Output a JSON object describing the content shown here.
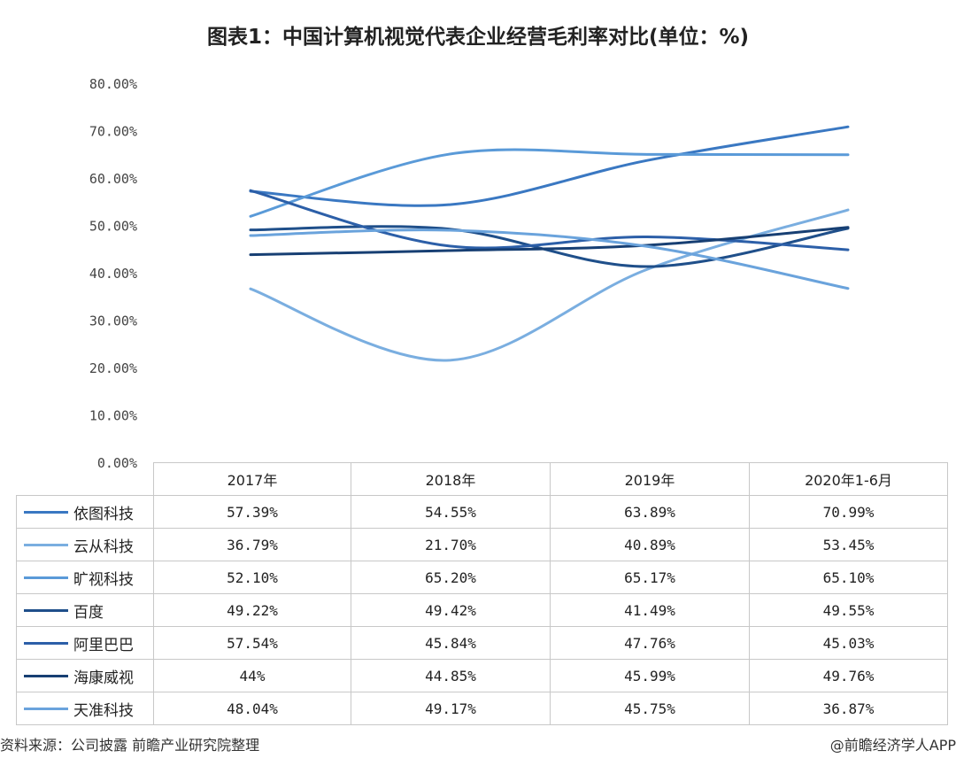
{
  "chart_data": {
    "type": "line",
    "title": "图表1：中国计算机视觉代表企业经营毛利率对比(单位：%)",
    "categories": [
      "2017年",
      "2018年",
      "2019年",
      "2020年1-6月"
    ],
    "ylim": [
      0,
      80
    ],
    "yticks": [
      "0.00%",
      "10.00%",
      "20.00%",
      "30.00%",
      "40.00%",
      "50.00%",
      "60.00%",
      "70.00%",
      "80.00%"
    ],
    "series": [
      {
        "name": "依图科技",
        "values": [
          57.39,
          54.55,
          63.89,
          70.99
        ],
        "labels": [
          "57.39%",
          "54.55%",
          "63.89%",
          "70.99%"
        ],
        "color": "#3a78c2"
      },
      {
        "name": "云从科技",
        "values": [
          36.79,
          21.7,
          40.89,
          53.45
        ],
        "labels": [
          "36.79%",
          "21.70%",
          "40.89%",
          "53.45%"
        ],
        "color": "#7aaee0"
      },
      {
        "name": "旷视科技",
        "values": [
          52.1,
          65.2,
          65.17,
          65.1
        ],
        "labels": [
          "52.10%",
          "65.20%",
          "65.17%",
          "65.10%"
        ],
        "color": "#5a9ad8"
      },
      {
        "name": "百度",
        "values": [
          49.22,
          49.42,
          41.49,
          49.55
        ],
        "labels": [
          "49.22%",
          "49.42%",
          "41.49%",
          "49.55%"
        ],
        "color": "#1f4f8a"
      },
      {
        "name": "阿里巴巴",
        "values": [
          57.54,
          45.84,
          47.76,
          45.03
        ],
        "labels": [
          "57.54%",
          "45.84%",
          "47.76%",
          "45.03%"
        ],
        "color": "#2c5fa8"
      },
      {
        "name": "海康威视",
        "values": [
          44,
          44.85,
          45.99,
          49.76
        ],
        "labels": [
          "44%",
          "44.85%",
          "45.99%",
          "49.76%"
        ],
        "color": "#173f73"
      },
      {
        "name": "天准科技",
        "values": [
          48.04,
          49.17,
          45.75,
          36.87
        ],
        "labels": [
          "48.04%",
          "49.17%",
          "45.75%",
          "36.87%"
        ],
        "color": "#6aa3dc"
      }
    ]
  },
  "footer": {
    "source": "资料来源：公司披露 前瞻产业研究院整理",
    "brand": "@前瞻经济学人APP"
  }
}
